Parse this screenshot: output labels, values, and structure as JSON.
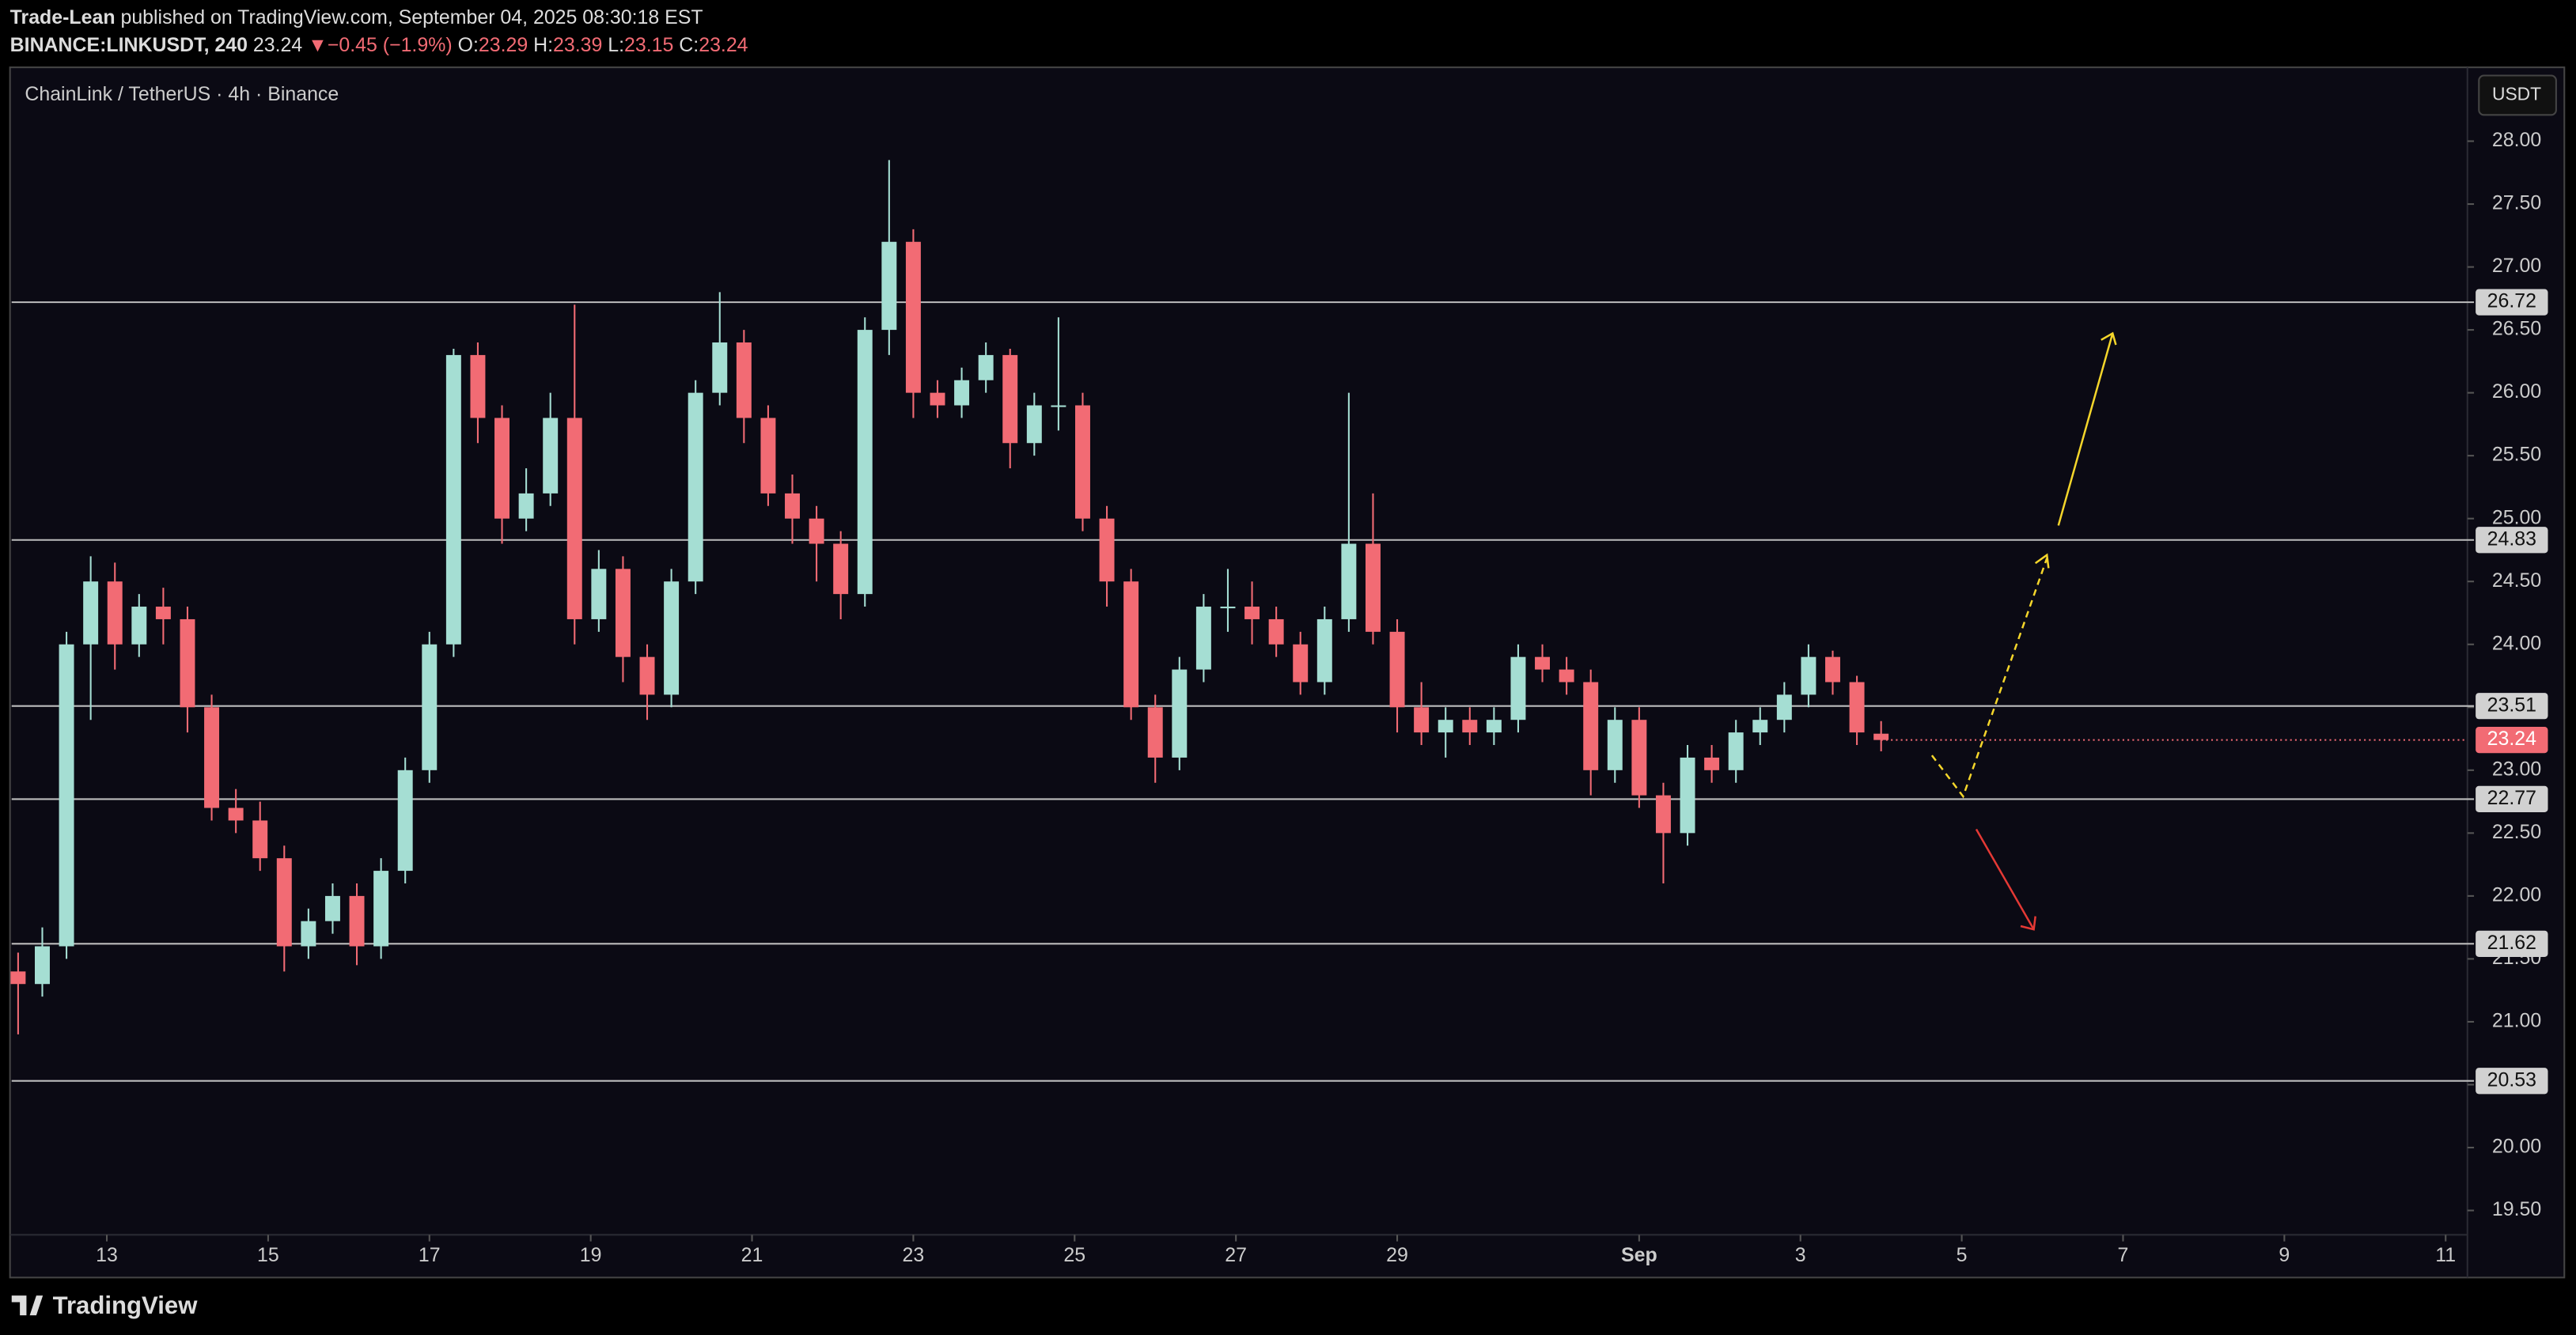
{
  "header": {
    "author": "Trade-Lean",
    "published": "published on TradingView.com, September 04, 2025 08:30:18 EST",
    "symbol": "BINANCE:LINKUSDT, 240",
    "price": "23.24",
    "arrow": "▼",
    "change": "−0.45 (−1.9%)",
    "o_label": "O:",
    "o": "23.29",
    "h_label": "H:",
    "h": "23.39",
    "l_label": "L:",
    "l": "23.15",
    "c_label": "C:",
    "c": "23.24"
  },
  "footer": {
    "brand": "TradingView"
  },
  "chart_data": {
    "type": "candlestick",
    "title": "ChainLink / TetherUS · 4h · Binance",
    "currency": "USDT",
    "up_color": "#a5ded3",
    "down_color": "#f26b74",
    "x": [
      11.9,
      12.2,
      12.5,
      12.8,
      13.1,
      13.4,
      13.7,
      14.0,
      14.3,
      14.6,
      14.9,
      15.2,
      15.5,
      15.8,
      16.1,
      16.4,
      16.7,
      17.0,
      17.3,
      17.6,
      17.9,
      18.2,
      18.5,
      18.8,
      19.1,
      19.4,
      19.7,
      20.0,
      20.3,
      20.6,
      20.9,
      21.2,
      21.5,
      21.8,
      22.1,
      22.4,
      22.7,
      23.0,
      23.3,
      23.6,
      23.9,
      24.2,
      24.5,
      24.8,
      25.1,
      25.4,
      25.7,
      26.0,
      26.3,
      26.6,
      26.9,
      27.2,
      27.5,
      27.8,
      28.1,
      28.4,
      28.7,
      29.0,
      29.3,
      29.6,
      29.9,
      30.2,
      30.5,
      30.8,
      31.1,
      31.4,
      31.7,
      32.0,
      32.3,
      32.6,
      32.9,
      33.2,
      33.5,
      33.8,
      34.1,
      34.4,
      34.7,
      35.0
    ],
    "open": [
      21.4,
      21.3,
      21.6,
      24.0,
      24.5,
      24.0,
      24.3,
      24.2,
      23.5,
      22.7,
      22.6,
      22.3,
      21.6,
      21.8,
      22.0,
      21.6,
      22.2,
      23.0,
      24.0,
      26.3,
      25.8,
      25.0,
      25.2,
      25.8,
      24.2,
      24.6,
      23.9,
      23.6,
      24.5,
      26.0,
      26.4,
      25.8,
      25.2,
      25.0,
      24.8,
      24.4,
      26.5,
      27.2,
      26.0,
      25.9,
      26.1,
      26.3,
      25.6,
      25.9,
      25.9,
      25.0,
      24.5,
      23.5,
      23.1,
      23.8,
      24.3,
      24.3,
      24.2,
      24.0,
      23.7,
      24.2,
      24.8,
      24.1,
      23.5,
      23.3,
      23.4,
      23.3,
      23.4,
      23.9,
      23.8,
      23.7,
      23.0,
      23.4,
      22.8,
      22.5,
      23.1,
      23.0,
      23.3,
      23.4,
      23.6,
      23.9,
      23.7,
      23.29
    ],
    "high": [
      21.55,
      21.75,
      24.1,
      24.7,
      24.65,
      24.4,
      24.45,
      24.3,
      23.6,
      22.85,
      22.75,
      22.4,
      21.9,
      22.1,
      22.1,
      22.3,
      23.1,
      24.1,
      26.35,
      26.4,
      25.9,
      25.4,
      26.0,
      26.7,
      24.75,
      24.7,
      24.0,
      24.6,
      26.1,
      26.8,
      26.5,
      25.9,
      25.35,
      25.1,
      24.9,
      26.6,
      27.85,
      27.3,
      26.1,
      26.2,
      26.4,
      26.35,
      26.0,
      26.6,
      26.0,
      25.1,
      24.6,
      23.6,
      23.9,
      24.4,
      24.6,
      24.5,
      24.3,
      24.1,
      24.3,
      26.0,
      25.2,
      24.2,
      23.7,
      23.5,
      23.5,
      23.5,
      24.0,
      24.0,
      23.9,
      23.8,
      23.5,
      23.5,
      22.9,
      23.2,
      23.2,
      23.4,
      23.5,
      23.7,
      24.0,
      23.95,
      23.75,
      23.39
    ],
    "low": [
      20.9,
      21.2,
      21.5,
      23.4,
      23.8,
      23.9,
      24.0,
      23.3,
      22.6,
      22.5,
      22.2,
      21.4,
      21.5,
      21.7,
      21.45,
      21.5,
      22.1,
      22.9,
      23.9,
      25.6,
      24.8,
      24.9,
      25.1,
      24.0,
      24.1,
      23.7,
      23.4,
      23.5,
      24.4,
      25.9,
      25.6,
      25.1,
      24.8,
      24.5,
      24.2,
      24.3,
      26.3,
      25.8,
      25.8,
      25.8,
      26.0,
      25.4,
      25.5,
      25.7,
      24.9,
      24.3,
      23.4,
      22.9,
      23.0,
      23.7,
      24.1,
      24.0,
      23.9,
      23.6,
      23.6,
      24.1,
      24.0,
      23.3,
      23.2,
      23.1,
      23.2,
      23.2,
      23.3,
      23.7,
      23.6,
      22.8,
      22.9,
      22.7,
      22.1,
      22.4,
      22.9,
      22.9,
      23.2,
      23.3,
      23.5,
      23.6,
      23.2,
      23.15
    ],
    "close": [
      21.3,
      21.6,
      24.0,
      24.5,
      24.0,
      24.3,
      24.2,
      23.5,
      22.7,
      22.6,
      22.3,
      21.6,
      21.8,
      22.0,
      21.6,
      22.2,
      23.0,
      24.0,
      26.3,
      25.8,
      25.0,
      25.2,
      25.8,
      24.2,
      24.6,
      23.9,
      23.6,
      24.5,
      26.0,
      26.4,
      25.8,
      25.2,
      25.0,
      24.8,
      24.4,
      26.5,
      27.2,
      26.0,
      25.9,
      26.1,
      26.3,
      25.6,
      25.9,
      25.9,
      25.0,
      24.5,
      23.5,
      23.1,
      23.8,
      24.3,
      24.3,
      24.2,
      24.0,
      23.7,
      24.2,
      24.8,
      24.1,
      23.5,
      23.3,
      23.4,
      23.3,
      23.4,
      23.9,
      23.8,
      23.7,
      23.0,
      23.4,
      22.8,
      22.5,
      23.1,
      23.0,
      23.3,
      23.4,
      23.6,
      23.9,
      23.7,
      23.3,
      23.24
    ],
    "levels": [
      26.72,
      24.83,
      23.51,
      22.77,
      21.62,
      20.53
    ],
    "last_price": 23.24,
    "xlim": [
      11.82,
      42.27
    ],
    "xticks": [
      13,
      15,
      17,
      19,
      21,
      23,
      25,
      27,
      29,
      {
        "value": 32,
        "label": "Sep"
      },
      {
        "value": 34,
        "label": "3"
      },
      {
        "value": 36,
        "label": "5"
      },
      {
        "value": 38,
        "label": "7"
      },
      {
        "value": 40,
        "label": "9"
      },
      {
        "value": 42,
        "label": "11"
      }
    ],
    "ylim": [
      18.98,
      28.574
    ],
    "yticks": [
      {
        "value": 19.5,
        "label": "19.50"
      },
      {
        "value": 20,
        "label": "20.00"
      },
      {
        "value": 20.5,
        "label": "20.50"
      },
      {
        "value": 21,
        "label": "21.00"
      },
      {
        "value": 21.5,
        "label": "21.50"
      },
      {
        "value": 22,
        "label": "22.00"
      },
      {
        "value": 22.5,
        "label": "22.50"
      },
      {
        "value": 23,
        "label": "23.00"
      },
      {
        "value": 23.5,
        "label": "23.50"
      },
      {
        "value": 24,
        "label": "24.00"
      },
      {
        "value": 24.5,
        "label": "24.50"
      },
      {
        "value": 25,
        "label": "25.00"
      },
      {
        "value": 25.5,
        "label": "25.50"
      },
      {
        "value": 26,
        "label": "26.00"
      },
      {
        "value": 26.5,
        "label": "26.50"
      },
      {
        "value": 27,
        "label": "27.00"
      },
      {
        "value": 27.5,
        "label": "27.50"
      },
      {
        "value": 28,
        "label": "28.00"
      }
    ]
  }
}
